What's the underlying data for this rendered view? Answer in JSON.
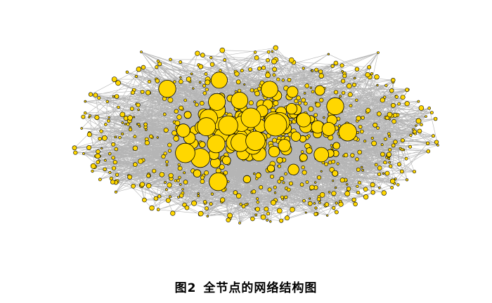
{
  "figure": {
    "caption_label": "图2",
    "caption_text": "全节点的网络结构图"
  },
  "graph": {
    "node_color": "#FFD700",
    "node_stroke": "#000000",
    "edge_color": "#A8A8A8",
    "background": "#FFFFFF"
  }
}
